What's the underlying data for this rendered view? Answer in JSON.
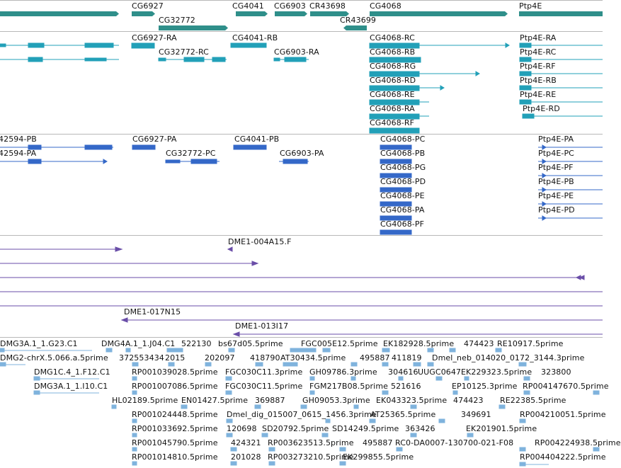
{
  "colors": {
    "gene_track": "#2f8f8a",
    "mrna_track": "#22a0b8",
    "protein_track": "#3468c8",
    "clone_track": "#6a4ea8",
    "est_track": "#7fb3dd"
  },
  "gene_track": {
    "labels": [
      "CG6927",
      "CG32772",
      "CG4041",
      "CG6903",
      "CR43698",
      "CR43699",
      "CG4068",
      "Ptp4E"
    ]
  },
  "mrna_track": {
    "labels": [
      "CG6927-RA",
      "CG32772-RC",
      "CG4041-RB",
      "CG6903-RA",
      "CG4068-RC",
      "CG4068-RB",
      "CG4068-RG",
      "CG4068-RD",
      "CG4068-RE",
      "CG4068-RA",
      "CG4068-RF",
      "Ptp4E-RA",
      "Ptp4E-RC",
      "Ptp4E-RF",
      "Ptp4E-RB",
      "Ptp4E-RE",
      "Ptp4E-RD"
    ]
  },
  "protein_track": {
    "labels": [
      "42594-PB",
      "42594-PA",
      "CG6927-PA",
      "CG32772-PC",
      "CG4041-PB",
      "CG6903-PA",
      "CG4068-PC",
      "CG4068-PB",
      "CG4068-PG",
      "CG4068-PD",
      "CG4068-PE",
      "CG4068-PA",
      "CG4068-PF",
      "Ptp4E-PA",
      "Ptp4E-PC",
      "Ptp4E-PF",
      "Ptp4E-PB",
      "Ptp4E-PE",
      "Ptp4E-PD"
    ]
  },
  "clone_track": {
    "labels": [
      "DME1-004A15.F",
      "DME1-017N15",
      "DME1-013I17"
    ]
  },
  "est_track": {
    "labels": [
      "DMG3A.1_1.G23.C1",
      "DMG4A.1_1.J04.C1",
      "522130",
      "bs67d05.5prime",
      "FGC005E12.5prime",
      "EK182928.5prime",
      "474423",
      "RE10917.5prime",
      "DMG2-chrX.5.066.a.5prime",
      "372553434",
      "2015",
      "202097",
      "418790",
      "AT30434.5prime",
      "495887",
      "411819",
      "Dmel_neb_014020_0172_3144.3prime",
      "DMG1C.4_1.F12.C1",
      "RP001039028.5prime",
      "FGC030C11.3prime",
      "GH09786.3prime",
      "304616",
      "UUGC0647",
      "EK229323.5prime",
      "323800",
      "DMG3A.1_1.I10.C1",
      "RP001007086.5prime",
      "FGC030C11.5prime",
      "FGM217B08.5prime",
      "521616",
      "EP10125.3prime",
      "RP004147670.5prime",
      "HL02189.5prime",
      "EN01427.5prime",
      "369887",
      "GH09053.3prime",
      "EK043323.5prime",
      "474423",
      "RE22385.5prime",
      "RP001024448.5prime",
      "Dmel_dig_015007_0615_1456.3prime",
      "AT25365.5prime",
      "349691",
      "RP004210051.5prime",
      "RP001033692.5prime",
      "120698",
      "SD20792.5prime",
      "SD14249.5prime",
      "363426",
      "EK201901.5prime",
      "RP001045790.5prime",
      "424321",
      "RP003623513.5prime",
      "495887",
      "RC0-DA0007-130700-021-F08",
      "RP004224938.5prime",
      "RP001014810.5prime",
      "201028",
      "RP003273210.5prime",
      "EK299855.5prime",
      "RP004404222.5prime"
    ]
  }
}
